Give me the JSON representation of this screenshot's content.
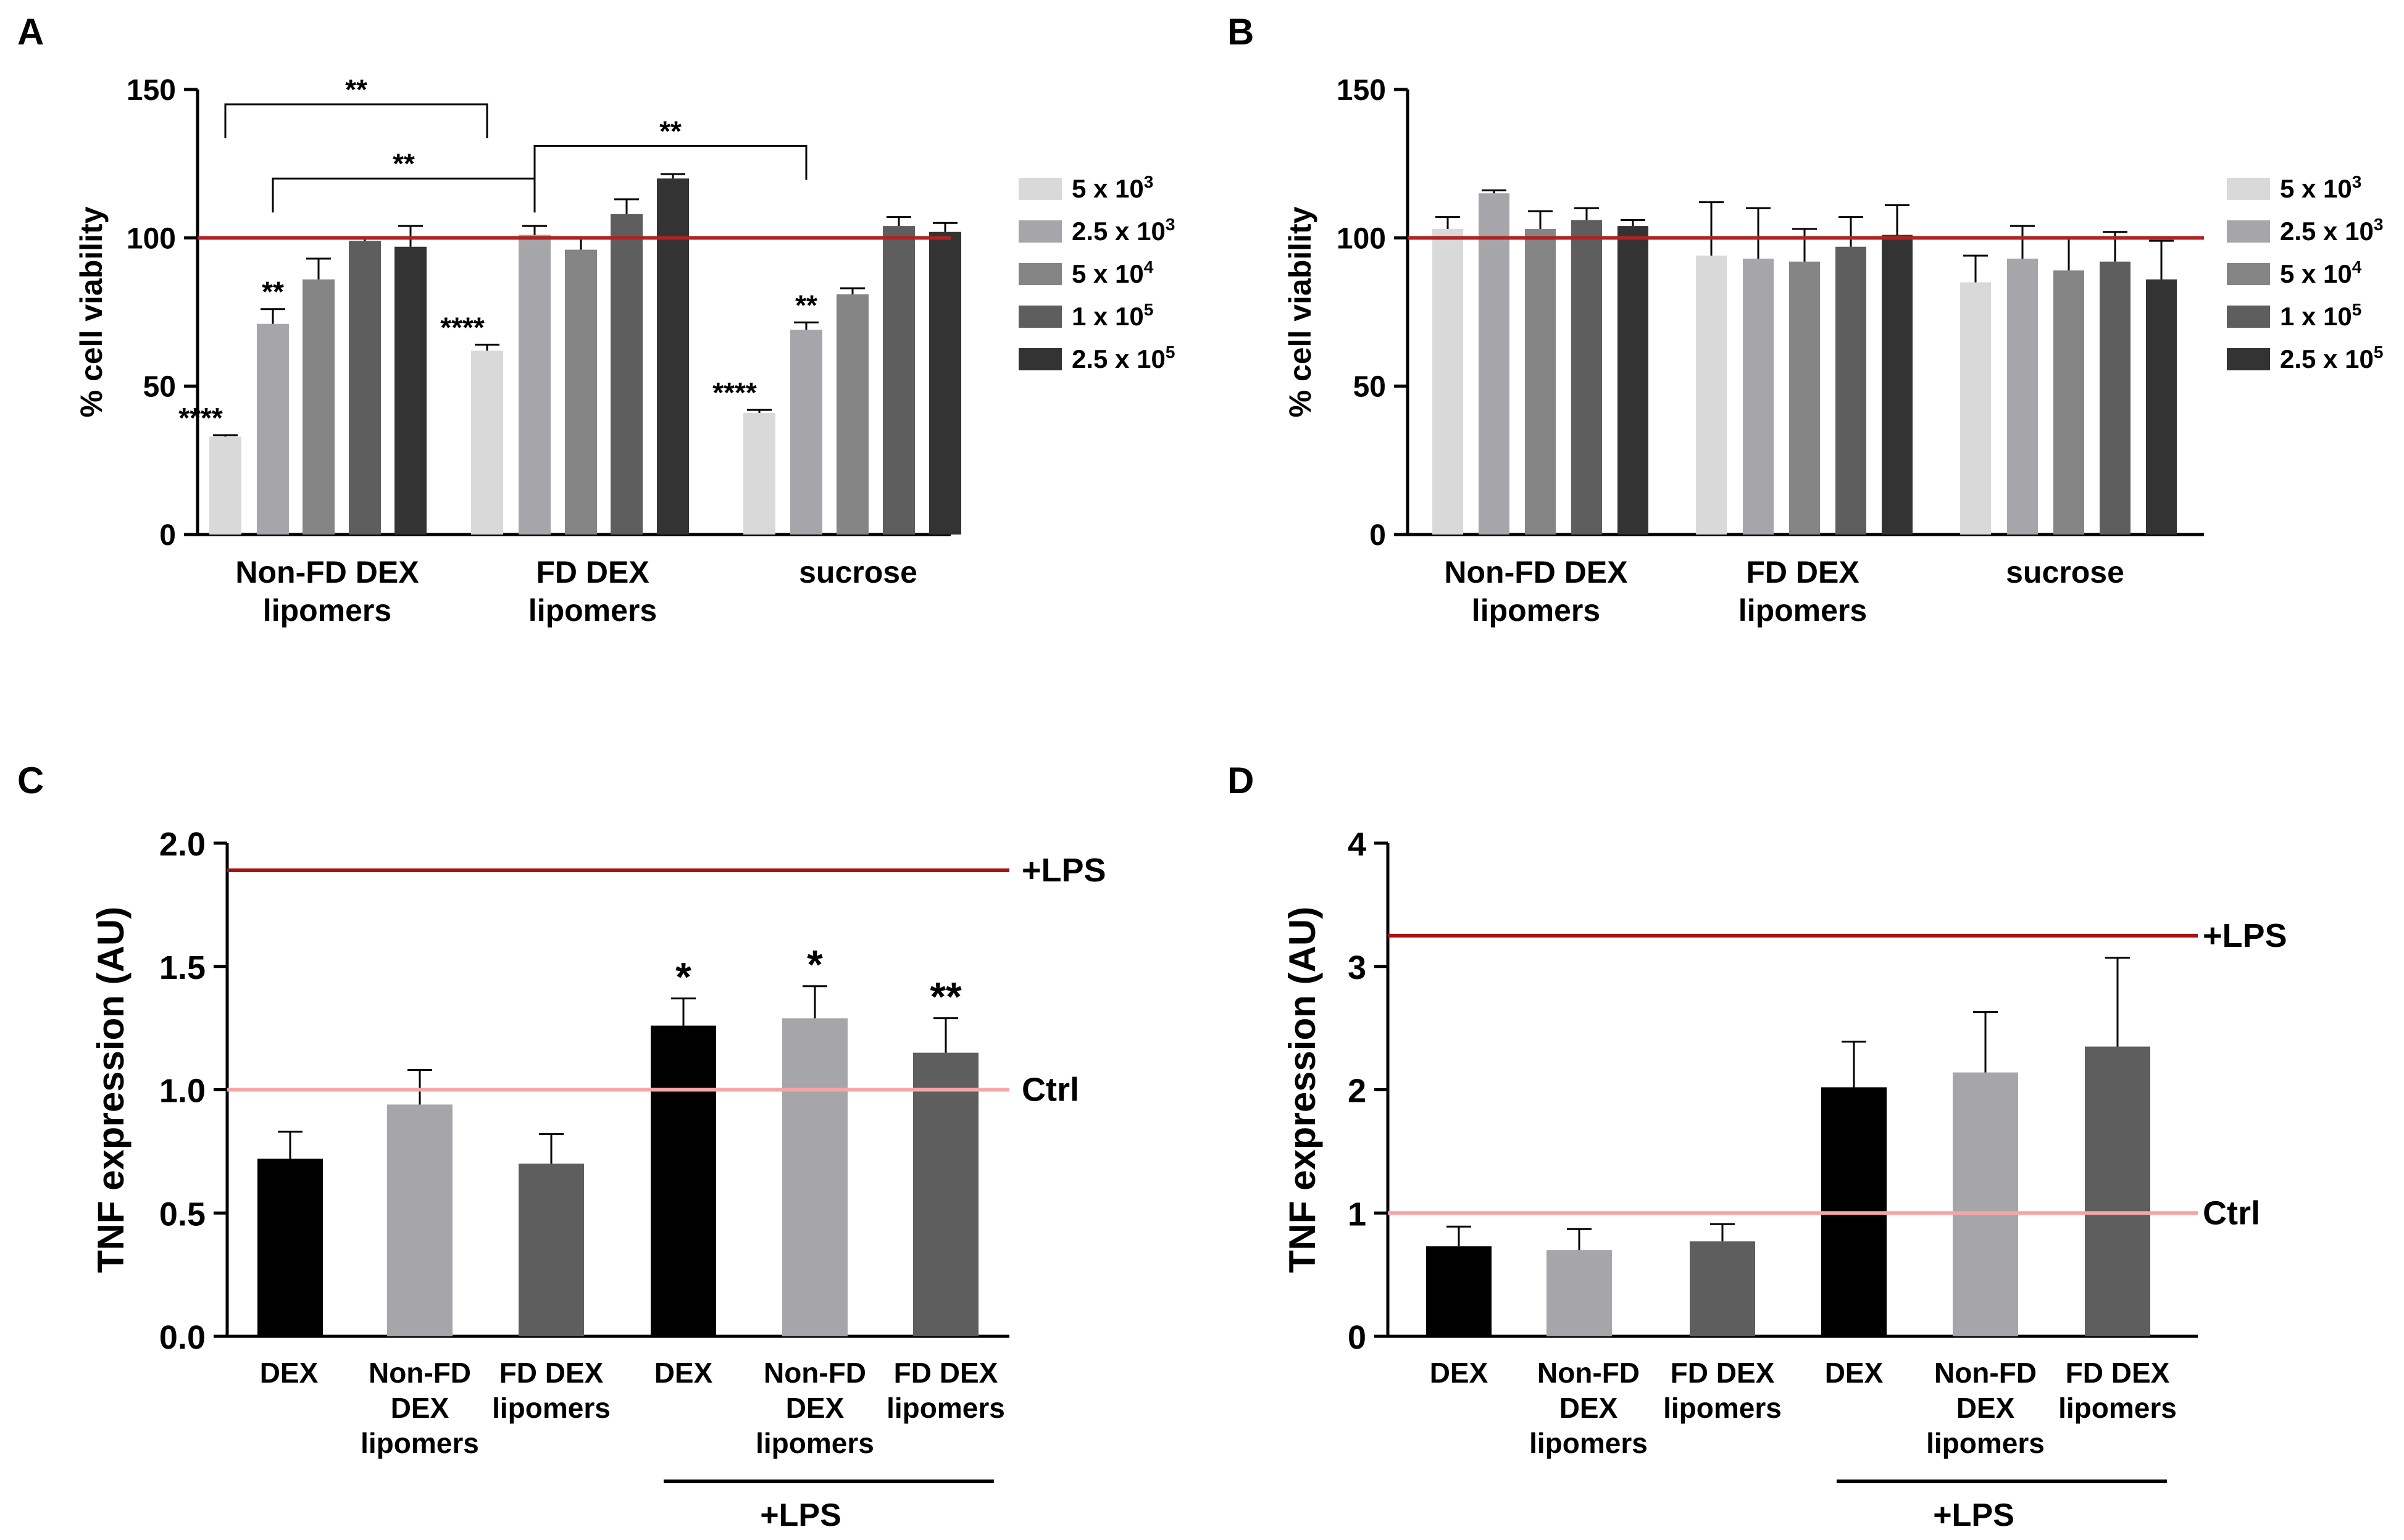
{
  "chart_data": [
    {
      "panel": "A",
      "type": "bar",
      "ylabel": "% cell viability",
      "ylim": [
        0,
        150
      ],
      "yticks": [
        0,
        50,
        100,
        150
      ],
      "reference_line": {
        "value": 100,
        "color": "#b22222"
      },
      "categories": [
        [
          "Non-FD DEX",
          "lipomers"
        ],
        [
          "FD DEX",
          "lipomers"
        ],
        [
          "sucrose"
        ]
      ],
      "series": [
        {
          "name": "5 x 10",
          "exp": "3",
          "color": "#d9d9d9",
          "values": [
            33,
            62,
            41
          ],
          "errors": [
            0.5,
            2,
            1
          ],
          "annotations": [
            "****",
            "****",
            "****"
          ]
        },
        {
          "name": "2.5 x 10",
          "exp": "3",
          "color": "#a6a6aa",
          "values": [
            71,
            101,
            69
          ],
          "errors": [
            5,
            3,
            2.5
          ],
          "annotations": [
            "**",
            "",
            "**"
          ]
        },
        {
          "name": "5 x 10",
          "exp": "4",
          "color": "#858585",
          "values": [
            86,
            96,
            81
          ],
          "errors": [
            7,
            4,
            2
          ],
          "annotations": [
            "",
            "",
            ""
          ]
        },
        {
          "name": "1 x 10",
          "exp": "5",
          "color": "#5e5e5e",
          "values": [
            99,
            108,
            104
          ],
          "errors": [
            1,
            5,
            3
          ],
          "annotations": [
            "",
            "",
            ""
          ]
        },
        {
          "name": "2.5 x 10",
          "exp": "5",
          "color": "#333333",
          "values": [
            97,
            120,
            102
          ],
          "errors": [
            7,
            1.5,
            3
          ],
          "annotations": [
            "",
            "",
            ""
          ]
        }
      ],
      "brackets": [
        {
          "from": [
            0,
            0
          ],
          "to": [
            1,
            0
          ],
          "y": 145,
          "label": "**"
        },
        {
          "from": [
            0,
            1
          ],
          "to": [
            1,
            1
          ],
          "y": 120,
          "label": "**"
        },
        {
          "from": [
            1,
            1
          ],
          "to": [
            2,
            1
          ],
          "y": 131,
          "label": "**"
        }
      ]
    },
    {
      "panel": "B",
      "type": "bar",
      "ylabel": "% cell viability",
      "ylim": [
        0,
        150
      ],
      "yticks": [
        0,
        50,
        100,
        150
      ],
      "reference_line": {
        "value": 100,
        "color": "#b22222"
      },
      "categories": [
        [
          "Non-FD DEX",
          "lipomers"
        ],
        [
          "FD DEX",
          "lipomers"
        ],
        [
          "sucrose"
        ]
      ],
      "series": [
        {
          "name": "5 x 10",
          "exp": "3",
          "color": "#d9d9d9",
          "values": [
            103,
            94,
            85
          ],
          "errors": [
            4,
            18,
            9
          ]
        },
        {
          "name": "2.5 x 10",
          "exp": "3",
          "color": "#a6a6aa",
          "values": [
            115,
            93,
            93
          ],
          "errors": [
            1,
            17,
            11
          ]
        },
        {
          "name": "5 x 10",
          "exp": "4",
          "color": "#858585",
          "values": [
            103,
            92,
            89
          ],
          "errors": [
            6,
            11,
            11
          ]
        },
        {
          "name": "1 x 10",
          "exp": "5",
          "color": "#5e5e5e",
          "values": [
            106,
            97,
            92
          ],
          "errors": [
            4,
            10,
            10
          ]
        },
        {
          "name": "2.5 x 10",
          "exp": "5",
          "color": "#333333",
          "values": [
            104,
            101,
            86
          ],
          "errors": [
            2,
            10,
            13
          ]
        }
      ]
    },
    {
      "panel": "C",
      "type": "bar",
      "ylabel": "TNF expression  (AU)",
      "ylim": [
        0,
        2.0
      ],
      "yticks": [
        "0.0",
        "0.5",
        "1.0",
        "1.5",
        "2.0"
      ],
      "lines": [
        {
          "value": 1.89,
          "label": "+LPS",
          "color": "#a31515"
        },
        {
          "value": 1.0,
          "label": "Ctrl",
          "color": "#f4a6a6"
        }
      ],
      "categories": [
        [
          "DEX"
        ],
        [
          "Non-FD",
          "DEX",
          "lipomers"
        ],
        [
          "FD DEX",
          "lipomers"
        ],
        [
          "DEX"
        ],
        [
          "Non-FD",
          "DEX",
          "lipomers"
        ],
        [
          "FD DEX",
          "lipomers"
        ]
      ],
      "values": [
        0.72,
        0.94,
        0.7,
        1.26,
        1.29,
        1.15
      ],
      "errors": [
        0.11,
        0.14,
        0.12,
        0.11,
        0.13,
        0.14
      ],
      "colors": [
        "#000000",
        "#a6a6aa",
        "#5e5e5e",
        "#000000",
        "#a6a6aa",
        "#5e5e5e"
      ],
      "annotations": [
        "",
        "",
        "",
        "*",
        "*",
        "**"
      ],
      "group_label": "+LPS"
    },
    {
      "panel": "D",
      "type": "bar",
      "ylabel": "TNF expression  (AU)",
      "ylim": [
        0,
        4
      ],
      "yticks": [
        "0",
        "1",
        "2",
        "3",
        "4"
      ],
      "lines": [
        {
          "value": 3.25,
          "label": "+LPS",
          "color": "#a31515"
        },
        {
          "value": 1.0,
          "label": "Ctrl",
          "color": "#f4a6a6"
        }
      ],
      "categories": [
        [
          "DEX"
        ],
        [
          "Non-FD",
          "DEX",
          "lipomers"
        ],
        [
          "FD DEX",
          "lipomers"
        ],
        [
          "DEX"
        ],
        [
          "Non-FD",
          "DEX",
          "lipomers"
        ],
        [
          "FD DEX",
          "lipomers"
        ]
      ],
      "values": [
        0.73,
        0.7,
        0.77,
        2.02,
        2.14,
        2.35
      ],
      "errors": [
        0.16,
        0.17,
        0.14,
        0.37,
        0.49,
        0.72
      ],
      "colors": [
        "#000000",
        "#a6a6aa",
        "#5e5e5e",
        "#000000",
        "#a6a6aa",
        "#5e5e5e"
      ],
      "annotations": [
        "",
        "",
        "",
        "",
        "",
        ""
      ],
      "group_label": "+LPS"
    }
  ]
}
